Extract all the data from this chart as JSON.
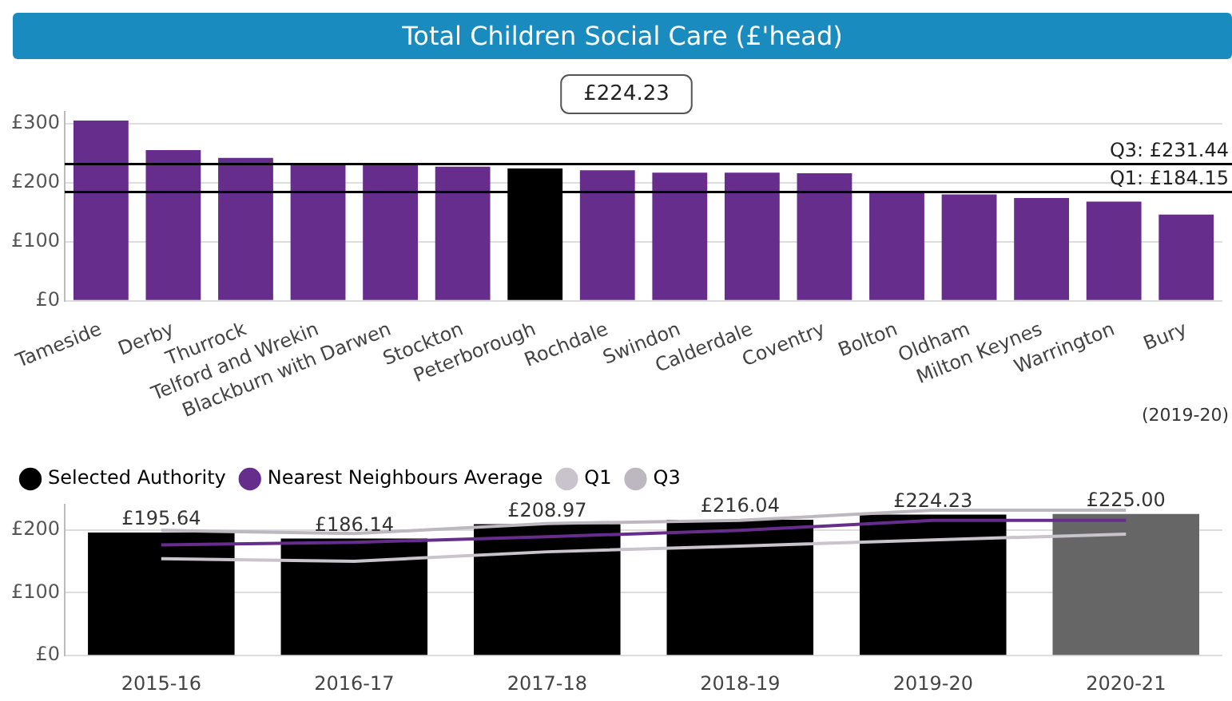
{
  "chart_data": [
    {
      "type": "bar",
      "title": "Total Children Social Care (£'head)",
      "categories": [
        "Tameside",
        "Derby",
        "Thurrock",
        "Telford and Wrekin",
        "Blackburn with Darwen",
        "Stockton",
        "Peterborough",
        "Rochdale",
        "Swindon",
        "Calderdale",
        "Coventry",
        "Bolton",
        "Oldham",
        "Milton Keynes",
        "Warrington",
        "Bury"
      ],
      "values": [
        305,
        255,
        242,
        233,
        233,
        227,
        224,
        221,
        217,
        217,
        216,
        186,
        180,
        174,
        168,
        146
      ],
      "colors": [
        "#662d8c",
        "#662d8c",
        "#662d8c",
        "#662d8c",
        "#662d8c",
        "#662d8c",
        "#000000",
        "#662d8c",
        "#662d8c",
        "#662d8c",
        "#662d8c",
        "#662d8c",
        "#662d8c",
        "#662d8c",
        "#662d8c",
        "#662d8c"
      ],
      "ylim": [
        0,
        320
      ],
      "yticks": [
        {
          "value": 0,
          "label": "£0"
        },
        {
          "value": 100,
          "label": "£100"
        },
        {
          "value": 200,
          "label": "£200"
        },
        {
          "value": 300,
          "label": "£300"
        }
      ],
      "grid": "y",
      "legend": false,
      "ref_lines": [
        {
          "axis": "y",
          "value": 231.44,
          "label": "Q3: £231.44",
          "color": "#000000"
        },
        {
          "axis": "y",
          "value": 184.15,
          "label": "Q1: £184.15",
          "color": "#000000"
        }
      ],
      "annotations": [
        "£224.23",
        "(2019-20)"
      ]
    },
    {
      "type": "bar",
      "categories": [
        "2015-16",
        "2016-17",
        "2017-18",
        "2018-19",
        "2019-20",
        "2020-21"
      ],
      "series": [
        {
          "name": "Selected Authority",
          "color": "#000000",
          "colors": [
            "#000000",
            "#000000",
            "#000000",
            "#000000",
            "#000000",
            "#666666"
          ],
          "values": [
            195.64,
            186.14,
            208.97,
            216.04,
            224.23,
            225.0
          ],
          "value_labels": [
            "£195.64",
            "£186.14",
            "£208.97",
            "£216.04",
            "£224.23",
            "£225.00"
          ]
        },
        {
          "name": "Nearest Neighbours Average",
          "type": "line",
          "color": "#662d8c",
          "values": [
            176,
            180,
            189,
            199,
            215,
            215
          ]
        },
        {
          "name": "Q1",
          "type": "line",
          "color": "#c9c3cc",
          "values": [
            154,
            150,
            165,
            174,
            184,
            193
          ]
        },
        {
          "name": "Q3",
          "type": "line",
          "color": "#bdb7bf",
          "values": [
            199,
            194,
            210,
            215,
            231,
            231
          ]
        }
      ],
      "ylim": [
        0,
        240
      ],
      "yticks": [
        {
          "value": 0,
          "label": "£0"
        },
        {
          "value": 100,
          "label": "£100"
        },
        {
          "value": 200,
          "label": "£200"
        }
      ],
      "grid": "y",
      "legend": "top left",
      "marker": "none"
    }
  ]
}
